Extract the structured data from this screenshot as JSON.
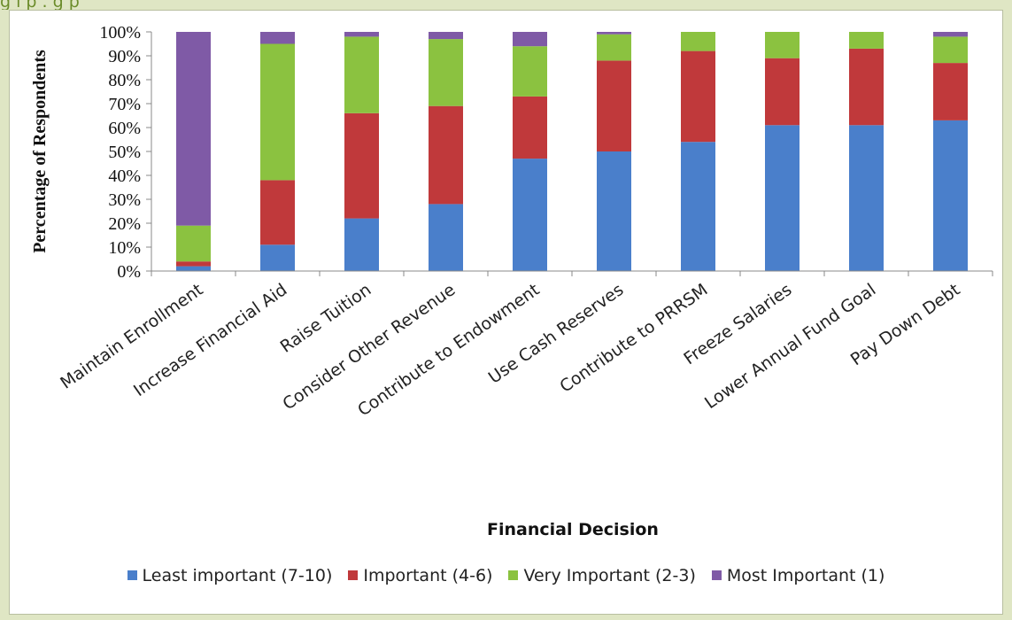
{
  "header": {
    "partial_text": "g i p    . g       p"
  },
  "chart_data": {
    "type": "bar",
    "stacked": true,
    "title": "",
    "xlabel": "Financial Decision",
    "ylabel": "Percentage of Respondents",
    "ylim": [
      0,
      100
    ],
    "yticks": [
      "0%",
      "10%",
      "20%",
      "30%",
      "40%",
      "50%",
      "60%",
      "70%",
      "80%",
      "90%",
      "100%"
    ],
    "grid": false,
    "legend_position": "bottom",
    "categories": [
      "Maintain Enrollment",
      "Increase Financial Aid",
      "Raise Tuition",
      "Consider Other Revenue",
      "Contribute to Endowment",
      "Use Cash Reserves",
      "Contribute to PRRSM",
      "Freeze Salaries",
      "Lower Annual Fund Goal",
      "Pay Down Debt"
    ],
    "series": [
      {
        "name": "Least important (7-10)",
        "color": "#4a7fcb",
        "values": [
          2,
          11,
          22,
          28,
          47,
          50,
          54,
          61,
          61,
          63
        ]
      },
      {
        "name": "Important (4-6)",
        "color": "#c0393b",
        "values": [
          2,
          27,
          44,
          41,
          26,
          38,
          38,
          28,
          32,
          24
        ]
      },
      {
        "name": "Very Important (2-3)",
        "color": "#8bc240",
        "values": [
          15,
          57,
          32,
          28,
          21,
          11,
          8,
          11,
          7,
          11
        ]
      },
      {
        "name": "Most Important (1)",
        "color": "#7f5aa6",
        "values": [
          81,
          5,
          2,
          3,
          6,
          1,
          0,
          0,
          0,
          2
        ]
      }
    ]
  }
}
